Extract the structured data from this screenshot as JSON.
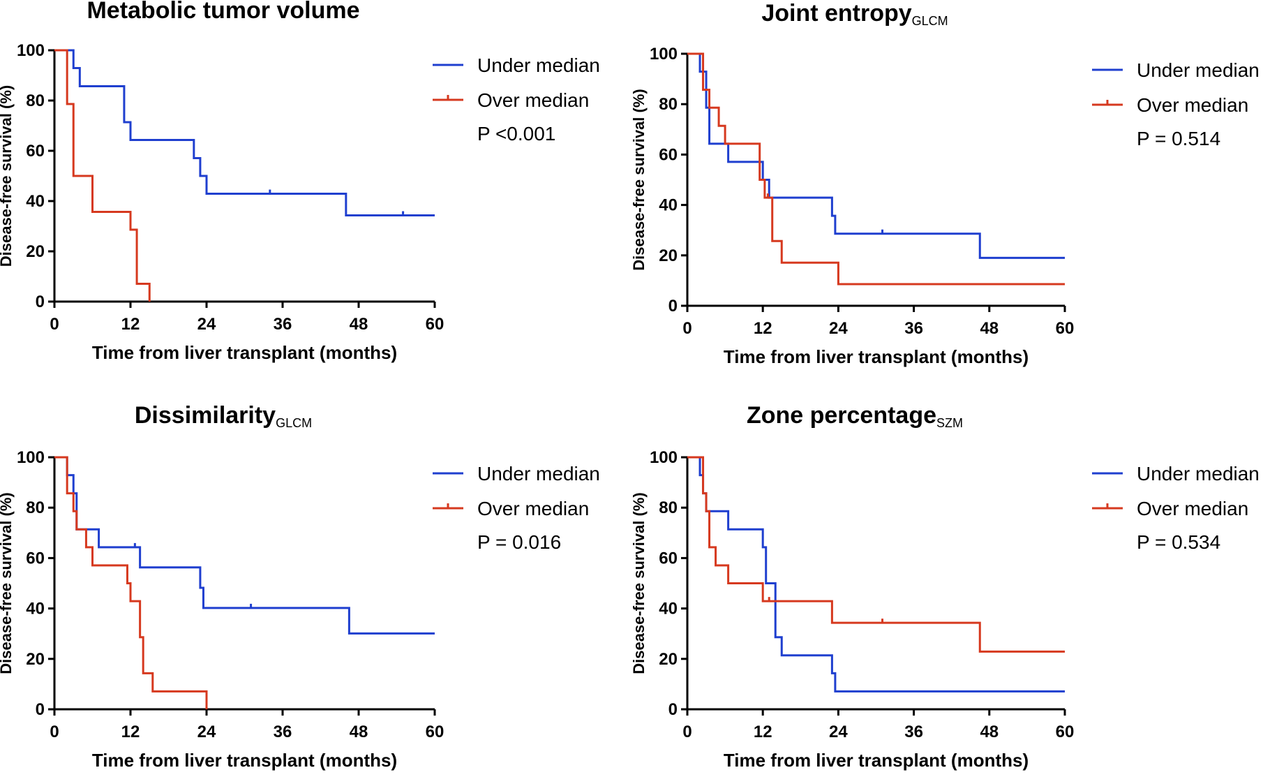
{
  "chart_data": [
    {
      "type": "line",
      "title": "Metabolic tumor volume",
      "title_sub": "",
      "xlabel": "Time from liver transplant (months)",
      "ylabel": "Disease-free survival (%)",
      "xlim": [
        0,
        60
      ],
      "ylim": [
        0,
        100
      ],
      "xticks": [
        "0",
        "12",
        "24",
        "36",
        "48",
        "60"
      ],
      "yticks": [
        "0",
        "20",
        "40",
        "60",
        "80",
        "100"
      ],
      "legend": "right",
      "pvalue": "P <0.001",
      "series": [
        {
          "name": "Under median",
          "color": "#1f3fcf",
          "x": [
            0,
            3,
            4,
            11,
            12,
            22,
            23,
            24,
            46,
            60
          ],
          "y": [
            100,
            92.9,
            85.7,
            71.4,
            64.3,
            57.1,
            50,
            42.9,
            34.3,
            34.3
          ],
          "censor_x": [
            34,
            55
          ]
        },
        {
          "name": "Over median",
          "color": "#d6391f",
          "x": [
            0,
            2,
            3,
            6,
            12,
            13,
            15
          ],
          "y": [
            100,
            78.6,
            50,
            35.7,
            28.6,
            7.1,
            0
          ],
          "censor_x": []
        }
      ]
    },
    {
      "type": "line",
      "title": "Joint entropy",
      "title_sub": "GLCM",
      "xlabel": "Time from liver transplant (months)",
      "ylabel": "Disease-free survival (%)",
      "xlim": [
        0,
        60
      ],
      "ylim": [
        0,
        100
      ],
      "xticks": [
        "0",
        "12",
        "24",
        "36",
        "48",
        "60"
      ],
      "yticks": [
        "0",
        "20",
        "40",
        "60",
        "80",
        "100"
      ],
      "legend": "right",
      "pvalue": "P = 0.514",
      "series": [
        {
          "name": "Under median",
          "color": "#1f3fcf",
          "x": [
            0,
            2,
            3,
            3.5,
            6.5,
            12,
            13,
            23,
            23.5,
            46.5,
            60
          ],
          "y": [
            100,
            92.9,
            78.6,
            64.3,
            57.1,
            50,
            42.9,
            35.7,
            28.6,
            19,
            19
          ],
          "censor_x": [
            31
          ]
        },
        {
          "name": "Over median",
          "color": "#d6391f",
          "x": [
            0,
            2.5,
            3,
            3.5,
            5,
            6,
            11.5,
            12.3,
            13.5,
            15,
            24,
            60
          ],
          "y": [
            100,
            85.7,
            85.7,
            78.6,
            71.4,
            64.3,
            50,
            42.9,
            25.7,
            17.1,
            8.6,
            8.6
          ],
          "censor_x": [
            12.8
          ]
        }
      ]
    },
    {
      "type": "line",
      "title": "Dissimilarity",
      "title_sub": "GLCM",
      "xlabel": "Time from liver transplant (months)",
      "ylabel": "Disease-free survival (%)",
      "xlim": [
        0,
        60
      ],
      "ylim": [
        0,
        100
      ],
      "xticks": [
        "0",
        "12",
        "24",
        "36",
        "48",
        "60"
      ],
      "yticks": [
        "0",
        "20",
        "40",
        "60",
        "80",
        "100"
      ],
      "legend": "right",
      "pvalue": "P = 0.016",
      "series": [
        {
          "name": "Under median",
          "color": "#1f3fcf",
          "x": [
            0,
            2,
            3,
            3.5,
            7,
            13.5,
            23,
            23.5,
            46.5,
            60
          ],
          "y": [
            100,
            92.9,
            85.7,
            71.4,
            64.3,
            56.3,
            48.2,
            40.2,
            30.1,
            30.1
          ],
          "censor_x": [
            12.7,
            31
          ]
        },
        {
          "name": "Over median",
          "color": "#d6391f",
          "x": [
            0,
            2,
            3,
            3.5,
            5,
            6,
            11.5,
            12,
            13.5,
            14,
            15.5,
            24
          ],
          "y": [
            100,
            85.7,
            78.6,
            71.4,
            64.3,
            57.1,
            50,
            42.9,
            28.6,
            14.3,
            7.1,
            0
          ],
          "censor_x": []
        }
      ]
    },
    {
      "type": "line",
      "title": "Zone percentage",
      "title_sub": "SZM",
      "xlabel": "Time from liver transplant (months)",
      "ylabel": "Disease-free survival (%)",
      "xlim": [
        0,
        60
      ],
      "ylim": [
        0,
        100
      ],
      "xticks": [
        "0",
        "12",
        "24",
        "36",
        "48",
        "60"
      ],
      "yticks": [
        "0",
        "20",
        "40",
        "60",
        "80",
        "100"
      ],
      "legend": "right",
      "pvalue": "P = 0.534",
      "series": [
        {
          "name": "Under median",
          "color": "#1f3fcf",
          "x": [
            0,
            2,
            2.5,
            3,
            6.5,
            12,
            12.5,
            14,
            15,
            23,
            23.5,
            24.5,
            60
          ],
          "y": [
            100,
            92.9,
            85.7,
            78.6,
            71.4,
            64.3,
            50,
            28.6,
            21.4,
            14.3,
            7.1,
            7.1,
            7.1
          ],
          "censor_x": []
        },
        {
          "name": "Over median",
          "color": "#d6391f",
          "x": [
            0,
            2.5,
            3,
            3.5,
            4.5,
            6.5,
            12,
            13,
            23,
            46.5,
            60
          ],
          "y": [
            100,
            85.7,
            78.6,
            64.3,
            57.1,
            50,
            42.9,
            42.9,
            34.3,
            22.9,
            22.9
          ],
          "censor_x": [
            13,
            31
          ]
        }
      ]
    }
  ]
}
